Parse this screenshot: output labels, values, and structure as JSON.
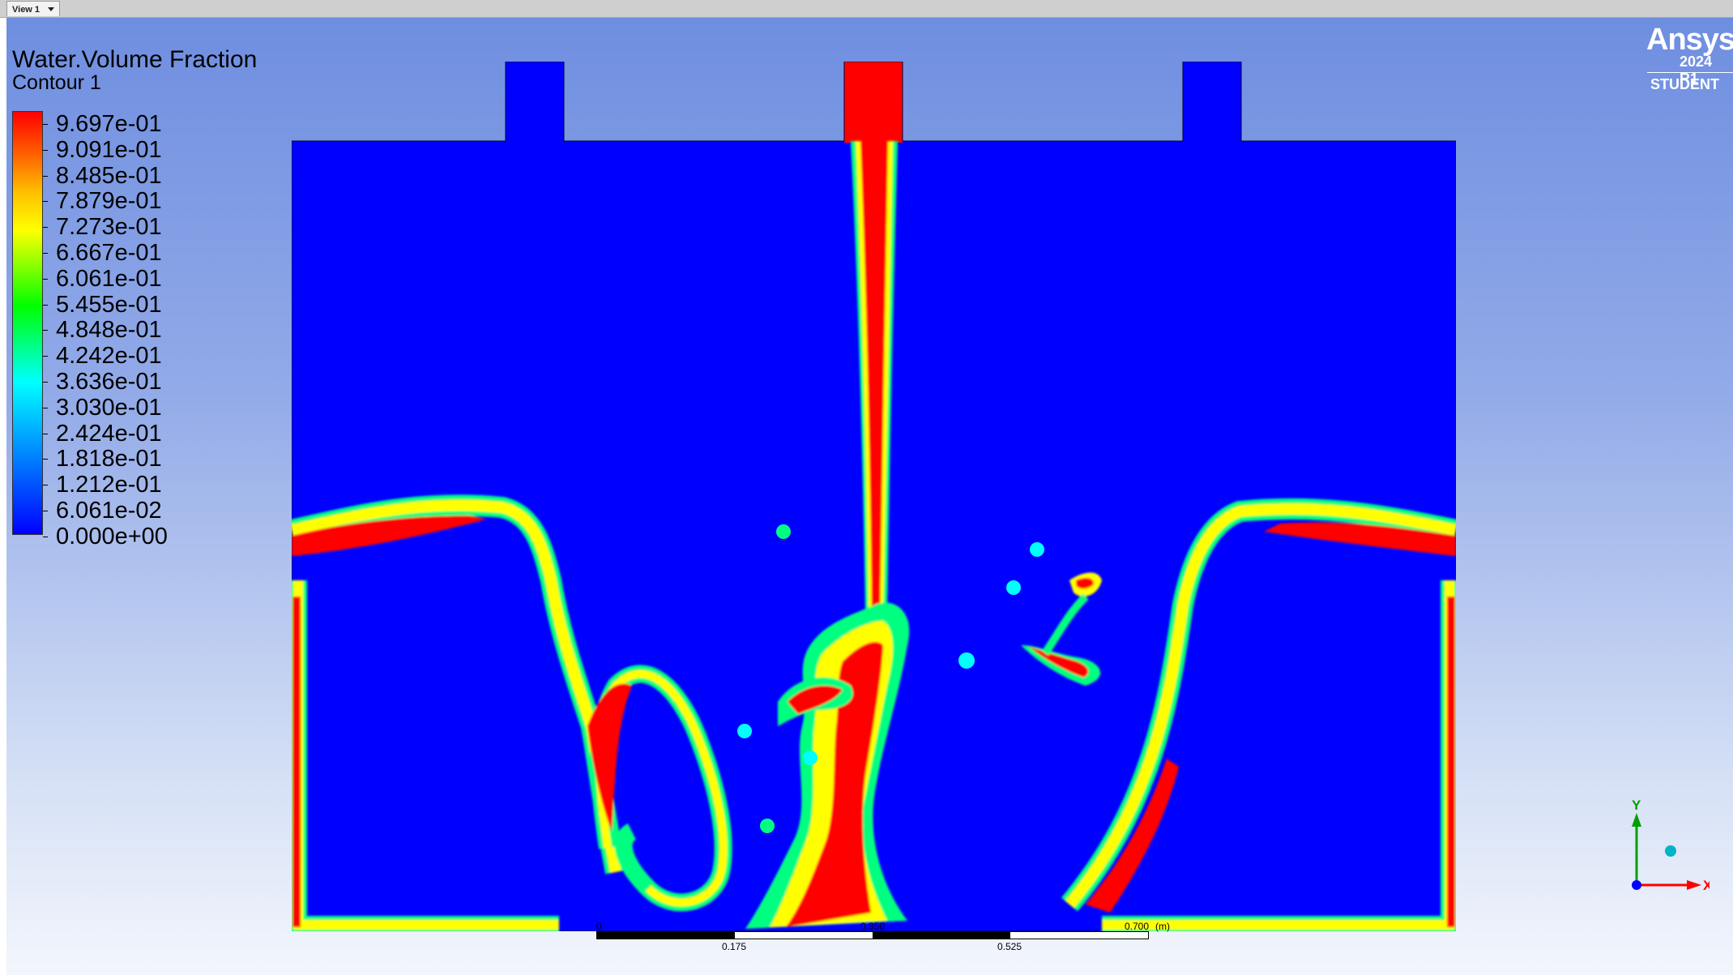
{
  "viewer": {
    "tab_label": "View 1"
  },
  "legend": {
    "title": "Water.Volume Fraction",
    "subtitle": "Contour 1",
    "levels": [
      "9.697e-01",
      "9.091e-01",
      "8.485e-01",
      "7.879e-01",
      "7.273e-01",
      "6.667e-01",
      "6.061e-01",
      "5.455e-01",
      "4.848e-01",
      "4.242e-01",
      "3.636e-01",
      "3.030e-01",
      "2.424e-01",
      "1.818e-01",
      "1.212e-01",
      "6.061e-02",
      "0.000e+00"
    ],
    "colormap": [
      "#0000ff",
      "#00ffff",
      "#00ff00",
      "#ffff00",
      "#ff0000"
    ]
  },
  "branding": {
    "name": "Ansys",
    "version": "2024 R1",
    "edition": "STUDENT"
  },
  "scale_bar": {
    "top_labels": [
      "0",
      "0.350",
      "0.700"
    ],
    "unit": "(m)",
    "bottom_labels": [
      "0.175",
      "0.525"
    ]
  },
  "axes_triad": {
    "y_label": "Y",
    "x_label": "X"
  },
  "colors": {
    "water": "#ff0000",
    "air": "#0000ff",
    "background_top": "#6e8ee0",
    "background_bottom": "#f3f6fc"
  }
}
